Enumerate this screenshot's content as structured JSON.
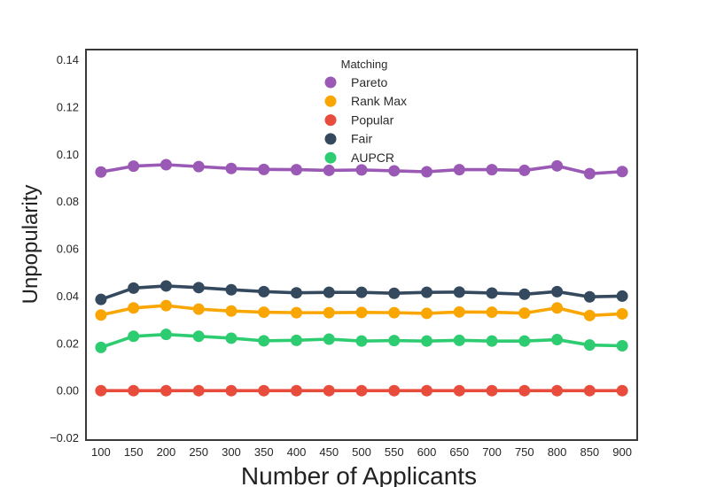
{
  "chart_data": {
    "type": "line",
    "title": "",
    "xlabel": "Number of Applicants",
    "ylabel": "Unpopularity",
    "x": [
      100,
      150,
      200,
      250,
      300,
      350,
      400,
      450,
      500,
      550,
      600,
      650,
      700,
      750,
      800,
      850,
      900
    ],
    "series": [
      {
        "name": "Pareto",
        "color": "#9b59b6",
        "values": [
          0.0925,
          0.095,
          0.0956,
          0.0948,
          0.094,
          0.0936,
          0.0935,
          0.0932,
          0.0934,
          0.093,
          0.0926,
          0.0935,
          0.0935,
          0.0932,
          0.0951,
          0.0918,
          0.0927
        ]
      },
      {
        "name": "Rank Max",
        "color": "#f9a602",
        "values": [
          0.032,
          0.035,
          0.036,
          0.0345,
          0.0337,
          0.0332,
          0.033,
          0.033,
          0.0331,
          0.033,
          0.0327,
          0.0333,
          0.0332,
          0.0328,
          0.035,
          0.0318,
          0.0325
        ]
      },
      {
        "name": "Popular",
        "color": "#e74c3c",
        "values": [
          0.0,
          0.0,
          0.0,
          0.0,
          0.0,
          0.0,
          0.0,
          0.0,
          0.0,
          0.0,
          0.0,
          0.0,
          0.0,
          0.0,
          0.0,
          0.0,
          0.0
        ]
      },
      {
        "name": "Fair",
        "color": "#34495e",
        "values": [
          0.0386,
          0.0434,
          0.0443,
          0.0436,
          0.0427,
          0.0419,
          0.0414,
          0.0416,
          0.0416,
          0.0412,
          0.0416,
          0.0417,
          0.0413,
          0.0408,
          0.0419,
          0.0397,
          0.04
        ]
      },
      {
        "name": "AUPCR",
        "color": "#2ecc71",
        "values": [
          0.0183,
          0.023,
          0.0238,
          0.023,
          0.0222,
          0.0211,
          0.0213,
          0.0218,
          0.021,
          0.0212,
          0.021,
          0.0213,
          0.021,
          0.021,
          0.0216,
          0.0193,
          0.019
        ]
      }
    ],
    "legend": {
      "title": "Matching",
      "position": "upper center",
      "entries": [
        "Pareto",
        "Rank Max",
        "Popular",
        "Fair",
        "AUPCR"
      ]
    },
    "xticks": [
      100,
      150,
      200,
      250,
      300,
      350,
      400,
      450,
      500,
      550,
      600,
      650,
      700,
      750,
      800,
      850,
      900
    ],
    "xtick_labels": [
      "100",
      "150",
      "200",
      "250",
      "300",
      "350",
      "400",
      "450",
      "500",
      "550",
      "600",
      "650",
      "700",
      "750",
      "800",
      "850",
      "900"
    ],
    "yticks": [
      0.14,
      0.12,
      0.1,
      0.08,
      0.06,
      0.04,
      0.02,
      0.0,
      -0.02
    ],
    "ytick_labels": [
      "0.14",
      "0.12",
      "0.10",
      "0.08",
      "0.06",
      "0.04",
      "0.02",
      "0.00",
      "−0.02"
    ],
    "xlim": [
      77,
      923
    ],
    "ylim": [
      -0.0209,
      0.1443
    ],
    "grid": false,
    "spine_color": "#3a3a3a",
    "marker_radius": 6.5,
    "line_width": 3.6
  }
}
